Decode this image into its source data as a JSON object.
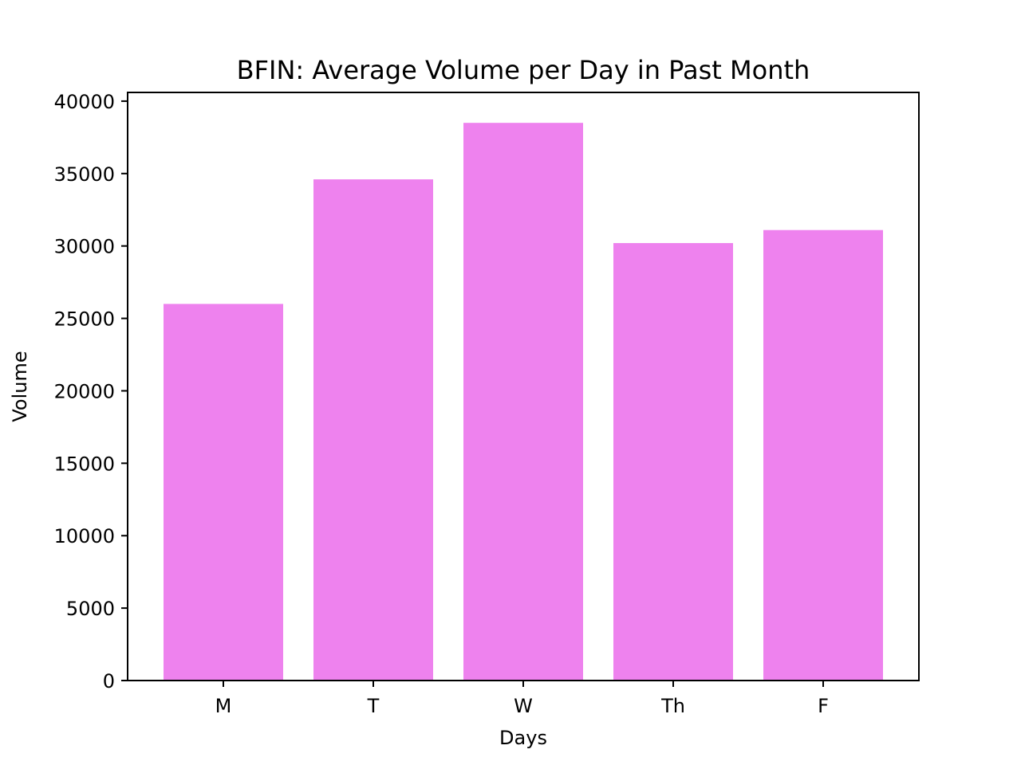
{
  "chart_data": {
    "type": "bar",
    "title": "BFIN: Average Volume per Day in Past Month",
    "xlabel": "Days",
    "ylabel": "Volume",
    "categories": [
      "M",
      "T",
      "W",
      "Th",
      "F"
    ],
    "values": [
      26000,
      34600,
      38500,
      30200,
      31100
    ],
    "ylim": [
      0,
      40600
    ],
    "yticks": [
      0,
      5000,
      10000,
      15000,
      20000,
      25000,
      30000,
      35000,
      40000
    ],
    "bar_color": "#ee82ee",
    "grid": false,
    "legend": "none"
  }
}
